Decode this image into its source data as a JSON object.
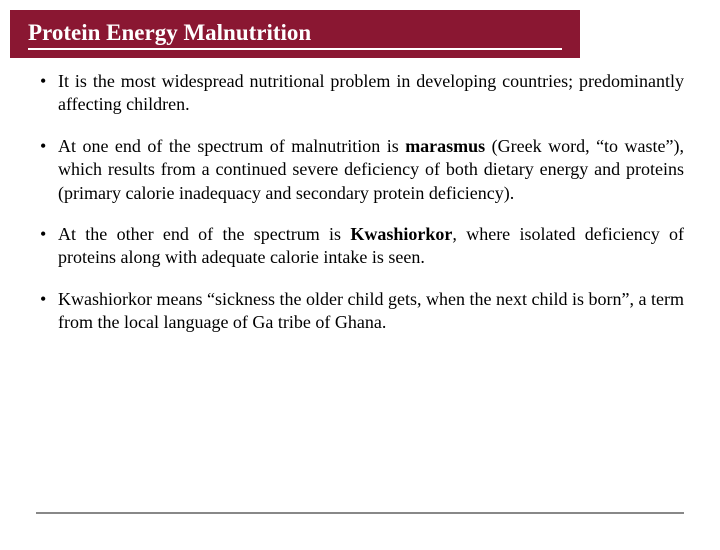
{
  "slide": {
    "title": "Protein Energy Malnutrition",
    "title_bar_color": "#8a1732",
    "title_text_color": "#ffffff",
    "title_fontsize": 23,
    "background_color": "#ffffff",
    "body_fontsize": 18,
    "body_color": "#000000",
    "footer_line_color": "#888888",
    "bullets": [
      {
        "pre": "It is the most widespread nutritional problem in developing countries; predominantly affecting children.",
        "bold": "",
        "post": ""
      },
      {
        "pre": "At one end of the spectrum of malnutrition is ",
        "bold": "marasmus",
        "post": " (Greek word, “to waste”), which results from a continued severe deficiency of both dietary energy and proteins (primary calorie inadequacy and secondary protein deficiency)."
      },
      {
        "pre": "At the other end of the spectrum is ",
        "bold": "Kwashiorkor",
        "italic_after_bold": ", ",
        "post": "where isolated deficiency of proteins along with adequate calorie intake is seen."
      },
      {
        "pre": "Kwashiorkor means “sickness the older child gets, when the next child is born”, a term from the local language of Ga tribe of Ghana.",
        "bold": "",
        "post": ""
      }
    ]
  }
}
